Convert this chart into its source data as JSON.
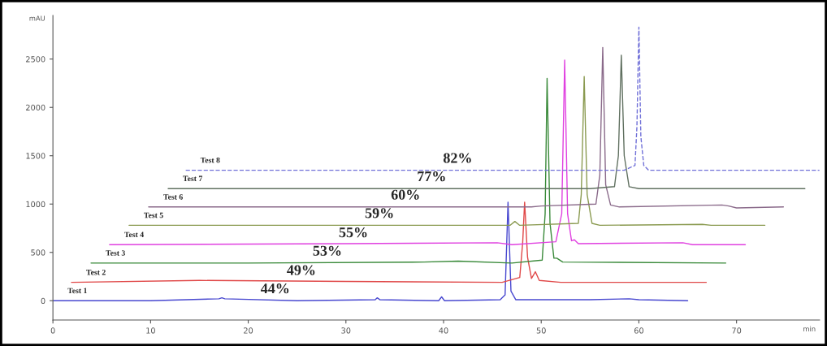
{
  "chart_data": {
    "type": "line",
    "xlabel": "min",
    "ylabel": "mAU",
    "xlim": [
      0,
      78.5
    ],
    "ylim": [
      -200,
      2950
    ],
    "xticks": [
      0,
      10,
      20,
      30,
      40,
      50,
      60,
      70
    ],
    "yticks": [
      0,
      500,
      1000,
      1500,
      2000,
      2500
    ],
    "grid": false,
    "legend": false,
    "marker": "none",
    "series": [
      {
        "name": "Test 1",
        "color": "#4848d0",
        "x": [
          0,
          10,
          17,
          17.3,
          17.6,
          25,
          33,
          33.2,
          33.5,
          39.5,
          39.8,
          40.1,
          45.8,
          46.3,
          46.6,
          46.9,
          47.4,
          55,
          59,
          60,
          65
        ],
        "values": [
          0,
          0,
          20,
          30,
          20,
          0,
          10,
          30,
          10,
          0,
          40,
          0,
          10,
          60,
          1020,
          100,
          10,
          10,
          20,
          10,
          0
        ]
      },
      {
        "name": "Test 2",
        "color": "#e04848",
        "x": [
          1.9,
          15,
          30,
          46,
          47.8,
          48.1,
          48.3,
          48.6,
          49.0,
          49.4,
          49.8,
          52,
          66.9
        ],
        "values": [
          190,
          210,
          200,
          190,
          240,
          600,
          1020,
          450,
          230,
          300,
          210,
          190,
          190
        ]
      },
      {
        "name": "Test 3",
        "color": "#3a8a3a",
        "x": [
          3.9,
          20,
          38,
          41.5,
          47,
          50.1,
          50.4,
          50.6,
          50.9,
          51.3,
          51.6,
          52.2,
          68.9
        ],
        "values": [
          390,
          390,
          400,
          410,
          390,
          420,
          900,
          2300,
          800,
          440,
          440,
          400,
          390
        ]
      },
      {
        "name": "Test 4",
        "color": "#e040e0",
        "x": [
          5.8,
          30,
          45.5,
          47,
          51.5,
          52.1,
          52.4,
          52.7,
          53.1,
          53.4,
          53.8,
          64.5,
          65.5,
          70.9
        ],
        "values": [
          580,
          590,
          600,
          580,
          610,
          900,
          2490,
          900,
          620,
          630,
          590,
          600,
          580,
          580
        ]
      },
      {
        "name": "Test 5",
        "color": "#8a9a50",
        "x": [
          7.8,
          30,
          46.8,
          47.3,
          47.8,
          53.8,
          54.1,
          54.4,
          54.7,
          55.2,
          56,
          66.5,
          67.4,
          72.9
        ],
        "values": [
          780,
          780,
          780,
          820,
          780,
          800,
          1100,
          2320,
          1100,
          800,
          780,
          790,
          780,
          780
        ]
      },
      {
        "name": "Test 6",
        "color": "#8a6a8a",
        "x": [
          9.8,
          40,
          49,
          50,
          55.6,
          56.0,
          56.3,
          56.6,
          57.1,
          58,
          68.5,
          69.2,
          70,
          74.8
        ],
        "values": [
          970,
          970,
          970,
          980,
          1000,
          1300,
          2620,
          1200,
          990,
          970,
          990,
          980,
          960,
          970
        ]
      },
      {
        "name": "Test 7",
        "color": "#607060",
        "x": [
          11.8,
          30,
          48,
          55,
          57.5,
          57.9,
          58.2,
          58.5,
          59,
          60,
          77
        ],
        "values": [
          1160,
          1160,
          1160,
          1160,
          1180,
          1500,
          2540,
          1500,
          1180,
          1160,
          1160
        ]
      },
      {
        "name": "Test 8",
        "color": "#7070d8",
        "line_style": "dashed",
        "x": [
          13.6,
          40,
          58.5,
          59.6,
          59.8,
          60,
          60.2,
          60.5,
          61,
          78.5
        ],
        "values": [
          1350,
          1350,
          1350,
          1400,
          1800,
          2830,
          1700,
          1400,
          1350,
          1350
        ]
      }
    ],
    "annotations": [
      "44%",
      "49%",
      "53%",
      "55%",
      "59%",
      "60%",
      "77%",
      "82%"
    ]
  }
}
